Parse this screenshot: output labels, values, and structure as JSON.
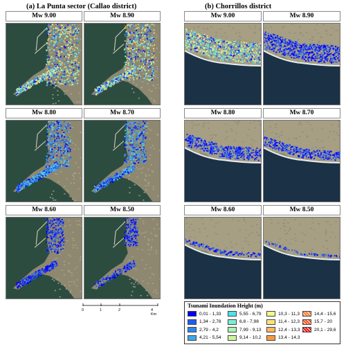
{
  "panel_a": {
    "title": "(a)   La Punta sector (Callao district)",
    "maps": [
      {
        "label": "Mw 9.00",
        "inundation": 1.0
      },
      {
        "label": "Mw 8.90",
        "inundation": 0.9
      },
      {
        "label": "Mw 8.80",
        "inundation": 0.7
      },
      {
        "label": "Mw 8.70",
        "inundation": 0.6
      },
      {
        "label": "Mw 8.60",
        "inundation": 0.45
      },
      {
        "label": "Mw 8.50",
        "inundation": 0.3
      }
    ]
  },
  "panel_b": {
    "title": "(b)   Chorrillos district",
    "maps": [
      {
        "label": "Mw 9.00",
        "inundation": 1.0
      },
      {
        "label": "Mw 8.90",
        "inundation": 0.85
      },
      {
        "label": "Mw 8.80",
        "inundation": 0.6
      },
      {
        "label": "Mw 8.70",
        "inundation": 0.45
      },
      {
        "label": "Mw 8.60",
        "inundation": 0.2
      },
      {
        "label": "Mw 8.50",
        "inundation": 0.1
      }
    ]
  },
  "scale": {
    "ticks": [
      "0",
      "1",
      "2",
      "4 Km"
    ]
  },
  "legend": {
    "title": "Tsunami Inundation Height (m)",
    "items": [
      {
        "label": "0,01 - 1,33",
        "color": "#0000ff"
      },
      {
        "label": "1,34 - 2,78",
        "color": "#1e5cf5"
      },
      {
        "label": "2,79 - 4,2",
        "color": "#2f86f0"
      },
      {
        "label": "4,21 - 5,54",
        "color": "#3aa8ee"
      },
      {
        "label": "5,55 - 6,79",
        "color": "#4fe3e8"
      },
      {
        "label": "6,8 - 7,98",
        "color": "#78f0d2"
      },
      {
        "label": "7,99 - 9,13",
        "color": "#a6f5b2"
      },
      {
        "label": "9,14 - 10,2",
        "color": "#cff59a"
      },
      {
        "label": "10,3 - 11,3",
        "color": "#f3f78c"
      },
      {
        "label": "11,4 - 12,3",
        "color": "#fde27a"
      },
      {
        "label": "12,4 - 13,3",
        "color": "#fdb95c"
      },
      {
        "label": "13,4 - 14,3",
        "color": "#fb9a3d"
      },
      {
        "label": "14,4 - 15,6",
        "color": "#f97a2c"
      },
      {
        "label": "15,7 - 20",
        "color": "#f0501c"
      },
      {
        "label": "20,1 - 29,6",
        "color": "#e01010"
      }
    ]
  }
}
